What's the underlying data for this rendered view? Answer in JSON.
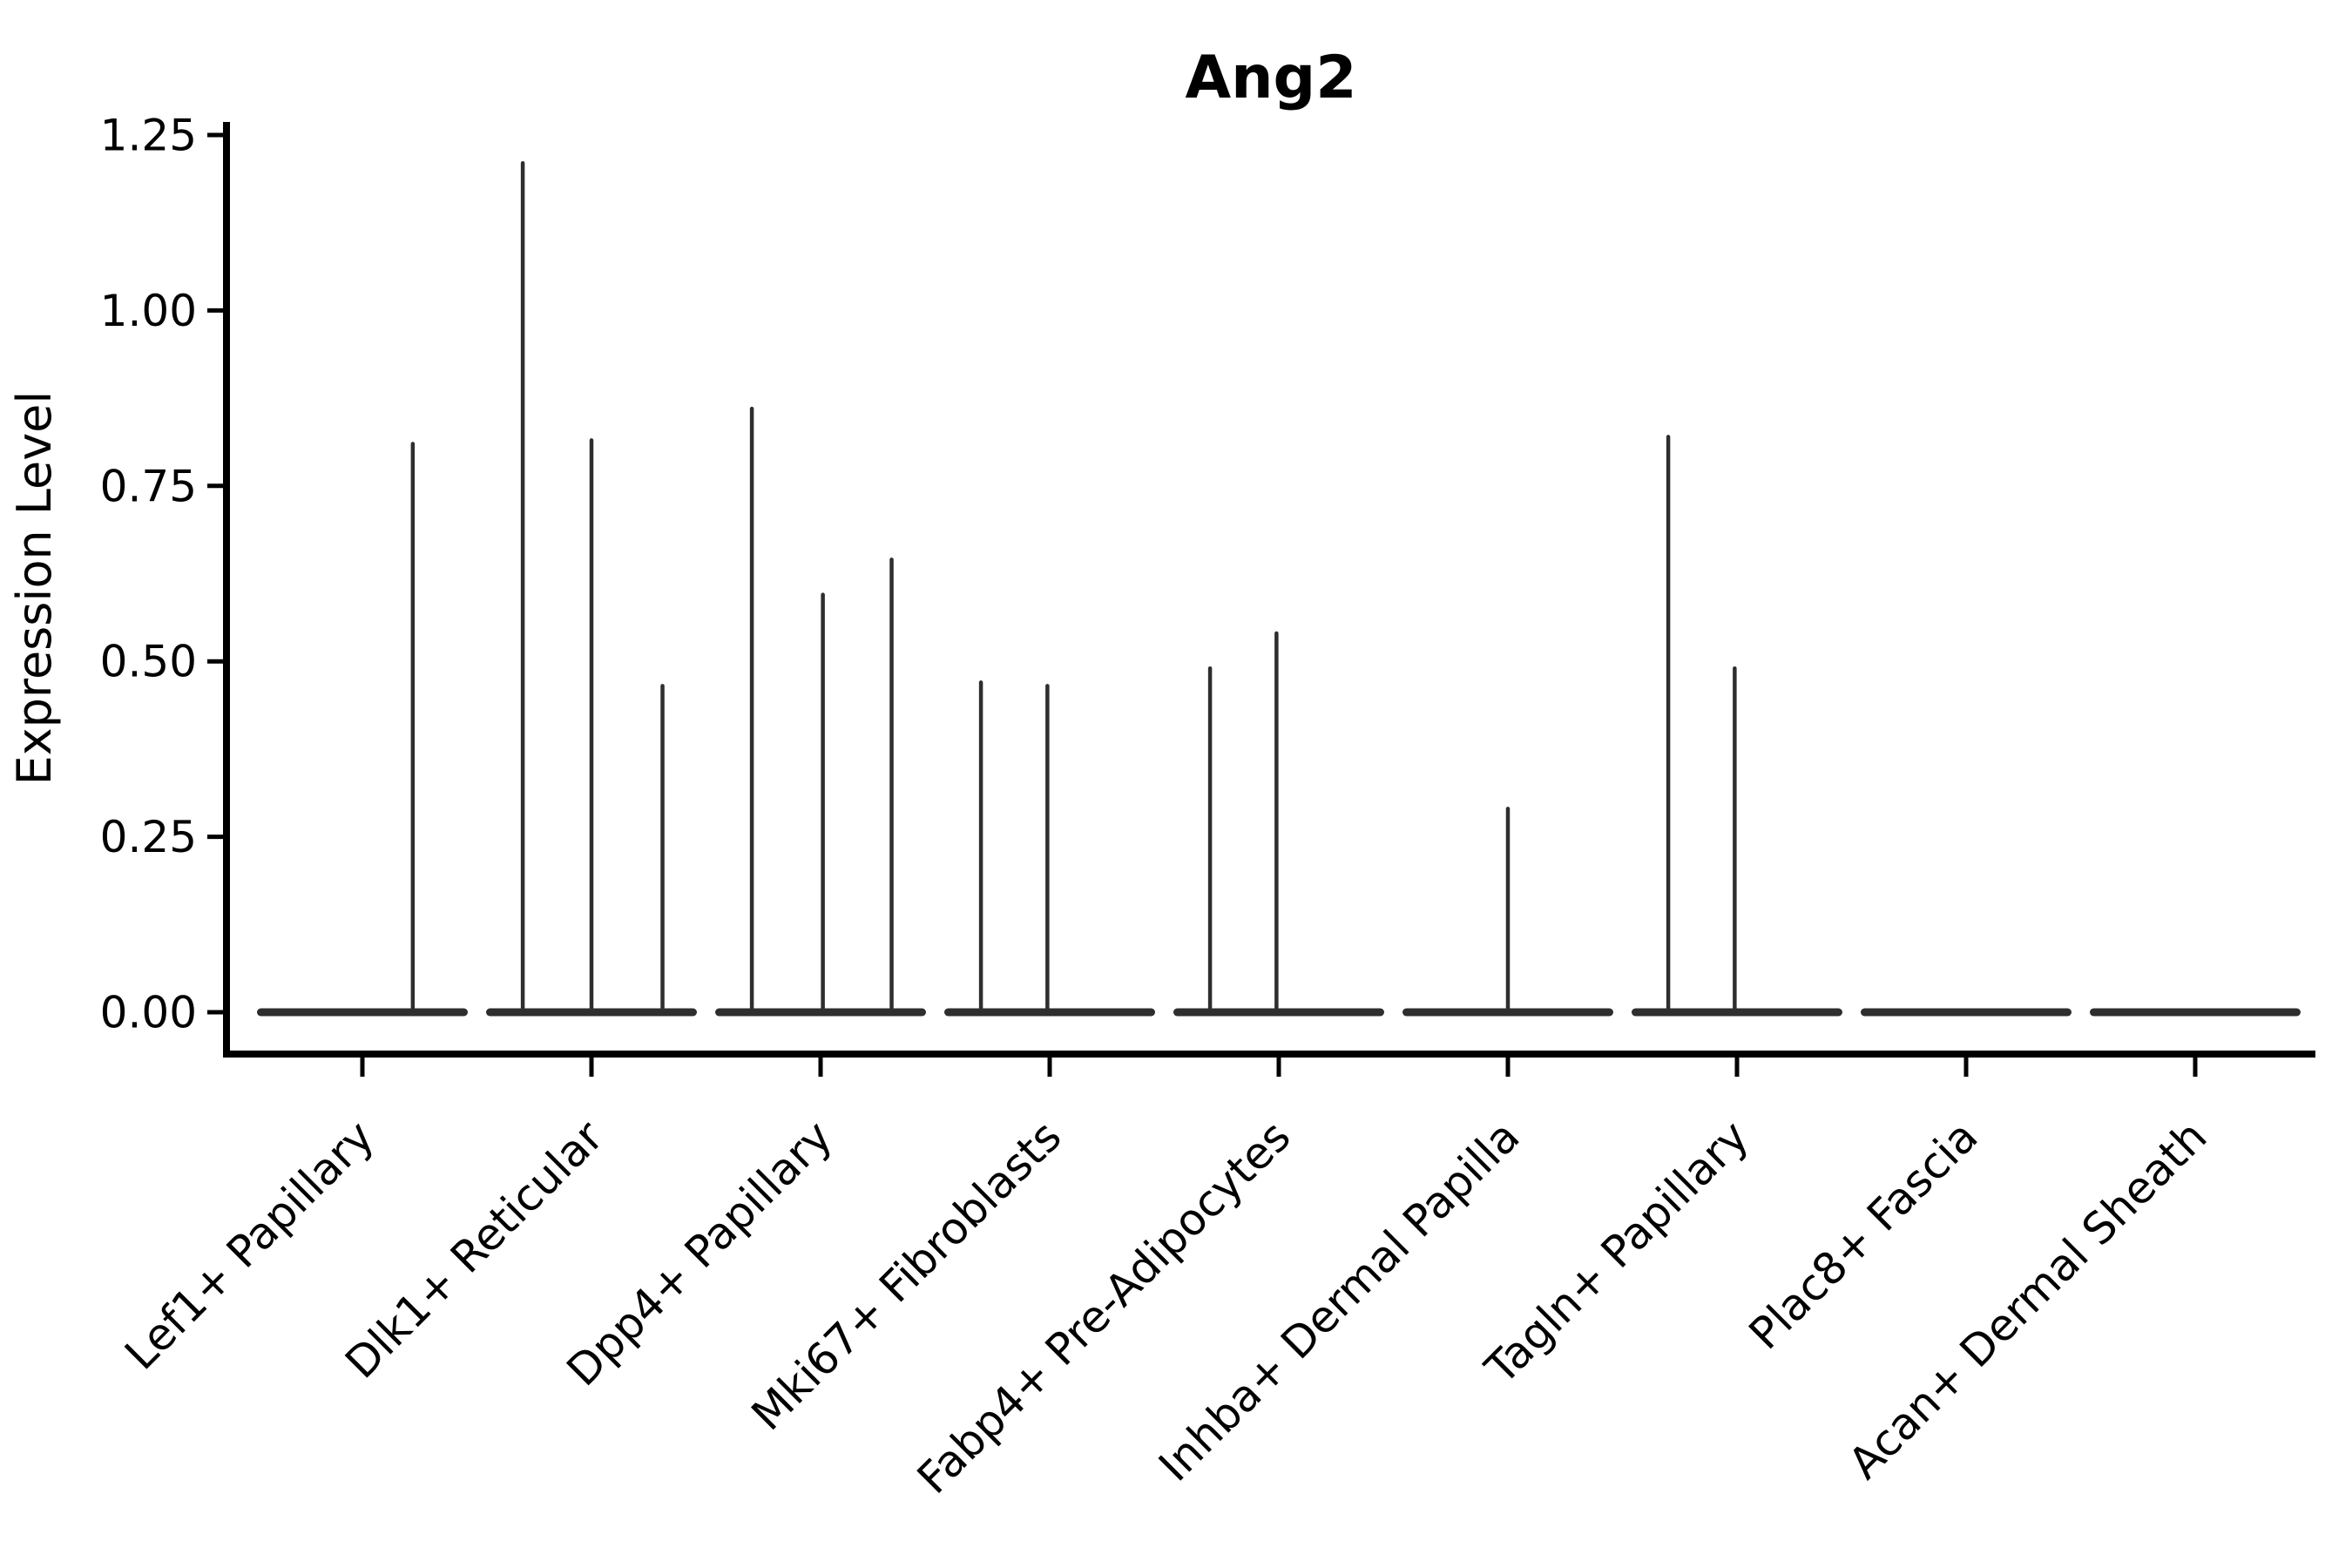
{
  "chart_data": {
    "type": "violin",
    "title": "Ang2",
    "xlabel": "",
    "ylabel": "Expression Level",
    "ylim": [
      -0.06,
      1.27
    ],
    "yticks": [
      0.0,
      0.25,
      0.5,
      0.75,
      1.0,
      1.25
    ],
    "ytick_labels": [
      "0.00",
      "0.25",
      "0.50",
      "0.75",
      "1.00",
      "1.25"
    ],
    "categories": [
      "Lef1+ Papillary",
      "Dlk1+ Reticular",
      "Dpp4+ Papillary",
      "Mki67+ Fibroblasts",
      "Fabp4+ Pre-Adipocytes",
      "Inhba+ Dermal Papilla",
      "Tagln+ Papillary",
      "Plac8+ Fascia",
      "Acan+ Dermal Sheath"
    ],
    "series": [
      {
        "name": "Lef1+ Papillary",
        "spikes": [
          {
            "dx": 0.22,
            "value": 0.81
          }
        ]
      },
      {
        "name": "Dlk1+ Reticular",
        "spikes": [
          {
            "dx": -0.3,
            "value": 1.21
          },
          {
            "dx": 0.0,
            "value": 0.815
          },
          {
            "dx": 0.31,
            "value": 0.465
          }
        ]
      },
      {
        "name": "Dpp4+ Papillary",
        "spikes": [
          {
            "dx": -0.3,
            "value": 0.86
          },
          {
            "dx": 0.01,
            "value": 0.595
          },
          {
            "dx": 0.31,
            "value": 0.645
          }
        ]
      },
      {
        "name": "Mki67+ Fibroblasts",
        "spikes": [
          {
            "dx": -0.3,
            "value": 0.47
          },
          {
            "dx": -0.01,
            "value": 0.465
          }
        ]
      },
      {
        "name": "Fabp4+ Pre-Adipocytes",
        "spikes": [
          {
            "dx": -0.3,
            "value": 0.49
          },
          {
            "dx": -0.01,
            "value": 0.54
          }
        ]
      },
      {
        "name": "Inhba+ Dermal Papilla",
        "spikes": [
          {
            "dx": 0.0,
            "value": 0.29
          }
        ]
      },
      {
        "name": "Tagln+ Papillary",
        "spikes": [
          {
            "dx": -0.3,
            "value": 0.82
          },
          {
            "dx": -0.01,
            "value": 0.49
          }
        ]
      },
      {
        "name": "Plac8+ Fascia",
        "spikes": []
      },
      {
        "name": "Acan+ Dermal Sheath",
        "spikes": []
      }
    ],
    "violin_width": 0.92,
    "grid": false,
    "legend": null,
    "colors": {
      "violin": "#2e2e2e",
      "axis": "#000000",
      "text": "#000000",
      "background": "#ffffff"
    }
  }
}
